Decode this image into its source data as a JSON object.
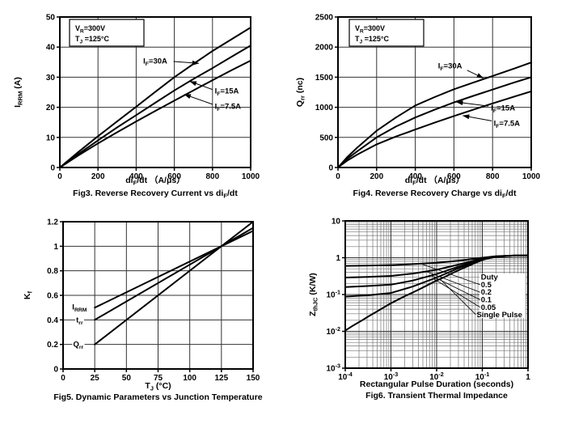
{
  "page": {
    "background": "#ffffff",
    "ink": "#000000",
    "grid_color": "#333333",
    "minor_grid_color": "#777777"
  },
  "chart_data": [
    {
      "id": "fig3",
      "name": "reverse-recovery-current-vs-difdt",
      "type": "line",
      "scale": "linear",
      "caption": "Fig3. Reverse Recovery Current vs di_{F}/dt",
      "xlabel": "di_{F}/dt （A/μs）",
      "ylabel": "I_{RRM} (A)",
      "xlim": [
        0,
        1000
      ],
      "ylim": [
        0,
        50
      ],
      "xticks": [
        0,
        200,
        400,
        600,
        800,
        1000
      ],
      "xtick_labels": [
        "0",
        "200",
        "400",
        "600",
        "800",
        "1000"
      ],
      "yticks": [
        0,
        10,
        20,
        30,
        40,
        50
      ],
      "ytick_labels": [
        "0",
        "10",
        "20",
        "30",
        "40",
        "50"
      ],
      "grid": true,
      "conditions": [
        "V_{R}=300V",
        "T_{J} =125°C"
      ],
      "series": [
        {
          "name": "I_{F}=30A",
          "points": [
            [
              0,
              0
            ],
            [
              100,
              5.3
            ],
            [
              200,
              10.4
            ],
            [
              300,
              15.3
            ],
            [
              400,
              20.2
            ],
            [
              500,
              25.1
            ],
            [
              600,
              30
            ],
            [
              700,
              34.4
            ],
            [
              800,
              38.7
            ],
            [
              900,
              42.6
            ],
            [
              1000,
              46.5
            ]
          ]
        },
        {
          "name": "I_{F}=15A",
          "points": [
            [
              0,
              0
            ],
            [
              100,
              4.6
            ],
            [
              200,
              9
            ],
            [
              300,
              13.3
            ],
            [
              400,
              17.4
            ],
            [
              500,
              21.5
            ],
            [
              600,
              25.6
            ],
            [
              700,
              29.4
            ],
            [
              800,
              33
            ],
            [
              900,
              36.8
            ],
            [
              1000,
              40.5
            ]
          ]
        },
        {
          "name": "I_{F}=7.5A",
          "points": [
            [
              0,
              0
            ],
            [
              100,
              4.1
            ],
            [
              200,
              8
            ],
            [
              300,
              11.7
            ],
            [
              400,
              15.3
            ],
            [
              500,
              18.8
            ],
            [
              600,
              22.2
            ],
            [
              700,
              25.6
            ],
            [
              800,
              29
            ],
            [
              900,
              32.3
            ],
            [
              1000,
              35.5
            ]
          ]
        }
      ],
      "annotations": [
        {
          "text": "I_{F}=30A",
          "x": 500,
          "y": 35.4,
          "anchor": "middle"
        },
        {
          "text": "I_{F}=15A",
          "x": 812,
          "y": 25.4,
          "anchor": "start"
        },
        {
          "text": "I_{F}=7.5A",
          "x": 812,
          "y": 20.3,
          "anchor": "start"
        }
      ],
      "arrows": [
        {
          "from": [
            596,
            35.2
          ],
          "to": [
            728,
            34.6
          ]
        },
        {
          "from": [
            800,
            25.9
          ],
          "to": [
            682,
            28.6
          ]
        },
        {
          "from": [
            800,
            21.0
          ],
          "to": [
            652,
            24.3
          ]
        }
      ]
    },
    {
      "id": "fig4",
      "name": "reverse-recovery-charge-vs-difdt",
      "type": "line",
      "scale": "linear",
      "caption": "Fig4. Reverse Recovery Charge vs di_{F}/dt",
      "xlabel": "di_{F}/dt （A/μs）",
      "ylabel": "Q_{rr} (nc)",
      "xlim": [
        0,
        1000
      ],
      "ylim": [
        0,
        2500
      ],
      "xticks": [
        0,
        200,
        400,
        600,
        800,
        1000
      ],
      "xtick_labels": [
        "0",
        "200",
        "400",
        "600",
        "800",
        "1000"
      ],
      "yticks": [
        0,
        500,
        1000,
        1500,
        2000,
        2500
      ],
      "ytick_labels": [
        "0",
        "500",
        "1000",
        "1500",
        "2000",
        "2500"
      ],
      "grid": true,
      "conditions": [
        "V_{R}=300V",
        "T_{J} =125°C"
      ],
      "series": [
        {
          "name": "I_{F}=30A",
          "points": [
            [
              0,
              0
            ],
            [
              50,
              180
            ],
            [
              100,
              330
            ],
            [
              200,
              610
            ],
            [
              300,
              830
            ],
            [
              400,
              1030
            ],
            [
              500,
              1170
            ],
            [
              600,
              1300
            ],
            [
              700,
              1410
            ],
            [
              800,
              1520
            ],
            [
              900,
              1630
            ],
            [
              1000,
              1745
            ]
          ]
        },
        {
          "name": "I_{F}=15A",
          "points": [
            [
              0,
              0
            ],
            [
              50,
              150
            ],
            [
              100,
              270
            ],
            [
              200,
              500
            ],
            [
              300,
              680
            ],
            [
              400,
              830
            ],
            [
              500,
              960
            ],
            [
              600,
              1080
            ],
            [
              700,
              1190
            ],
            [
              800,
              1295
            ],
            [
              900,
              1400
            ],
            [
              1000,
              1500
            ]
          ]
        },
        {
          "name": "I_{F}=7.5A",
          "points": [
            [
              0,
              0
            ],
            [
              50,
              120
            ],
            [
              100,
              215
            ],
            [
              200,
              385
            ],
            [
              300,
              515
            ],
            [
              400,
              630
            ],
            [
              500,
              745
            ],
            [
              600,
              855
            ],
            [
              700,
              960
            ],
            [
              800,
              1065
            ],
            [
              900,
              1165
            ],
            [
              1000,
              1265
            ]
          ]
        }
      ],
      "annotations": [
        {
          "text": "I_{F}=30A",
          "x": 580,
          "y": 1690,
          "anchor": "middle"
        },
        {
          "text": "I_{F}=15A",
          "x": 792,
          "y": 990,
          "anchor": "start"
        },
        {
          "text": "I_{F}=7.5A",
          "x": 806,
          "y": 735,
          "anchor": "start"
        }
      ],
      "arrows": [
        {
          "from": [
            668,
            1615
          ],
          "to": [
            752,
            1485
          ]
        },
        {
          "from": [
            778,
            1020
          ],
          "to": [
            613,
            1087
          ]
        },
        {
          "from": [
            795,
            775
          ],
          "to": [
            646,
            862
          ]
        }
      ]
    },
    {
      "id": "fig5",
      "name": "dynamic-parameters-vs-junction-temperature",
      "type": "line",
      "scale": "linear",
      "caption": "Fig5. Dynamic Parameters vs Junction Temperature",
      "xlabel": "T_{J} (°C)",
      "ylabel": "K_{f}",
      "xlim": [
        0,
        150
      ],
      "ylim": [
        0,
        1.2
      ],
      "xticks": [
        0,
        25,
        50,
        75,
        100,
        125,
        150
      ],
      "xtick_labels": [
        "0",
        "25",
        "50",
        "75",
        "100",
        "125",
        "150"
      ],
      "yticks": [
        0,
        0.2,
        0.4,
        0.6,
        0.8,
        1,
        1.2
      ],
      "ytick_labels": [
        "0",
        "0.2",
        "0.4",
        "0.6",
        "0.8",
        "1",
        "1.2"
      ],
      "grid": true,
      "series": [
        {
          "name": "I_{RRM}",
          "points": [
            [
              25,
              0.5
            ],
            [
              125,
              1.0
            ],
            [
              150,
              1.125
            ]
          ]
        },
        {
          "name": "t_{rr}",
          "points": [
            [
              25,
              0.4
            ],
            [
              125,
              1.0
            ],
            [
              150,
              1.15
            ]
          ]
        },
        {
          "name": "Q_{rr}",
          "points": [
            [
              25,
              0.2
            ],
            [
              125,
              1.0
            ],
            [
              150,
              1.2
            ]
          ]
        }
      ],
      "annotations": [
        {
          "text": "I_{RRM}",
          "x": 13,
          "y": 0.505,
          "anchor": "middle",
          "bg": true
        },
        {
          "text": "t_{rr}",
          "x": 13,
          "y": 0.4,
          "anchor": "middle",
          "bg": true
        },
        {
          "text": "Q_{rr}",
          "x": 12,
          "y": 0.2,
          "anchor": "middle",
          "bg": true
        }
      ]
    },
    {
      "id": "fig6",
      "name": "transient-thermal-impedance",
      "type": "line",
      "scale": "log-log",
      "caption": "Fig6. Transient Thermal Impedance",
      "xlabel": "Rectangular Pulse Duration (seconds)",
      "ylabel": "Z_{thJC} (K/W)",
      "xlim": [
        0.0001,
        1
      ],
      "ylim": [
        0.001,
        10
      ],
      "xticks": [
        0.0001,
        0.001,
        0.01,
        0.1,
        1
      ],
      "xtick_labels": [
        "10^{-4}",
        "10^{-3}",
        "10^{-2}",
        "10^{-1}",
        "1"
      ],
      "yticks": [
        0.001,
        0.01,
        0.1,
        1,
        10
      ],
      "ytick_labels": [
        "10^{-3}",
        "10^{-2}",
        "10^{-1}",
        "1",
        "10"
      ],
      "grid": true,
      "minor_grid": true,
      "legend_bg": {
        "x": [
          0.087,
          0.885
        ],
        "y": [
          0.023,
          0.37
        ]
      },
      "series": [
        {
          "name": "Duty=0.5",
          "points": [
            [
              0.0001,
              0.6
            ],
            [
              0.0003,
              0.61
            ],
            [
              0.001,
              0.63
            ],
            [
              0.003,
              0.67
            ],
            [
              0.01,
              0.73
            ],
            [
              0.03,
              0.83
            ],
            [
              0.1,
              1.0
            ],
            [
              0.2,
              1.1
            ],
            [
              0.5,
              1.15
            ],
            [
              1,
              1.15
            ]
          ]
        },
        {
          "name": "Duty=0.2",
          "points": [
            [
              0.0001,
              0.29
            ],
            [
              0.0003,
              0.3
            ],
            [
              0.001,
              0.32
            ],
            [
              0.003,
              0.37
            ],
            [
              0.01,
              0.47
            ],
            [
              0.03,
              0.65
            ],
            [
              0.1,
              0.95
            ],
            [
              0.2,
              1.08
            ],
            [
              0.5,
              1.14
            ],
            [
              1,
              1.15
            ]
          ]
        },
        {
          "name": "Duty=0.1",
          "points": [
            [
              0.0001,
              0.16
            ],
            [
              0.0003,
              0.17
            ],
            [
              0.001,
              0.185
            ],
            [
              0.003,
              0.24
            ],
            [
              0.01,
              0.36
            ],
            [
              0.03,
              0.57
            ],
            [
              0.1,
              0.92
            ],
            [
              0.2,
              1.07
            ],
            [
              0.5,
              1.14
            ],
            [
              1,
              1.15
            ]
          ]
        },
        {
          "name": "Duty=0.05",
          "points": [
            [
              0.0001,
              0.088
            ],
            [
              0.0003,
              0.095
            ],
            [
              0.001,
              0.11
            ],
            [
              0.003,
              0.165
            ],
            [
              0.01,
              0.29
            ],
            [
              0.03,
              0.52
            ],
            [
              0.1,
              0.9
            ],
            [
              0.2,
              1.05
            ],
            [
              0.5,
              1.14
            ],
            [
              1,
              1.15
            ]
          ]
        },
        {
          "name": "Single Pulse",
          "points": [
            [
              0.0001,
              0.0105
            ],
            [
              0.00015,
              0.0145
            ],
            [
              0.00022,
              0.019
            ],
            [
              0.00033,
              0.026
            ],
            [
              0.0005,
              0.035
            ],
            [
              0.00075,
              0.047
            ],
            [
              0.001,
              0.058
            ],
            [
              0.0015,
              0.075
            ],
            [
              0.0022,
              0.095
            ],
            [
              0.0033,
              0.12
            ],
            [
              0.005,
              0.155
            ],
            [
              0.0075,
              0.2
            ],
            [
              0.01,
              0.24
            ],
            [
              0.015,
              0.3
            ],
            [
              0.022,
              0.38
            ],
            [
              0.033,
              0.48
            ],
            [
              0.05,
              0.6
            ],
            [
              0.075,
              0.75
            ],
            [
              0.1,
              0.87
            ],
            [
              0.15,
              1.0
            ],
            [
              0.22,
              1.08
            ],
            [
              0.33,
              1.12
            ],
            [
              0.5,
              1.14
            ],
            [
              1,
              1.15
            ]
          ]
        }
      ],
      "annotations": [
        {
          "text": "Duty",
          "x": 0.093,
          "y": 0.3,
          "anchor": "start"
        },
        {
          "text": "0.5",
          "x": 0.093,
          "y": 0.185,
          "anchor": "start"
        },
        {
          "text": "0.2",
          "x": 0.093,
          "y": 0.115,
          "anchor": "start"
        },
        {
          "text": "0.1",
          "x": 0.093,
          "y": 0.072,
          "anchor": "start"
        },
        {
          "text": "0.05",
          "x": 0.093,
          "y": 0.045,
          "anchor": "start"
        },
        {
          "text": "Single Pulse",
          "x": 0.075,
          "y": 0.0285,
          "anchor": "start"
        }
      ],
      "leaders": [
        {
          "from": [
            0.0045,
            0.69
          ],
          "to": [
            0.09,
            0.185
          ]
        },
        {
          "from": [
            0.006,
            0.42
          ],
          "to": [
            0.09,
            0.115
          ]
        },
        {
          "from": [
            0.0075,
            0.33
          ],
          "to": [
            0.09,
            0.072
          ]
        },
        {
          "from": [
            0.0085,
            0.27
          ],
          "to": [
            0.09,
            0.045
          ]
        },
        {
          "from": [
            0.012,
            0.26
          ],
          "to": [
            0.072,
            0.0285
          ]
        }
      ]
    }
  ]
}
